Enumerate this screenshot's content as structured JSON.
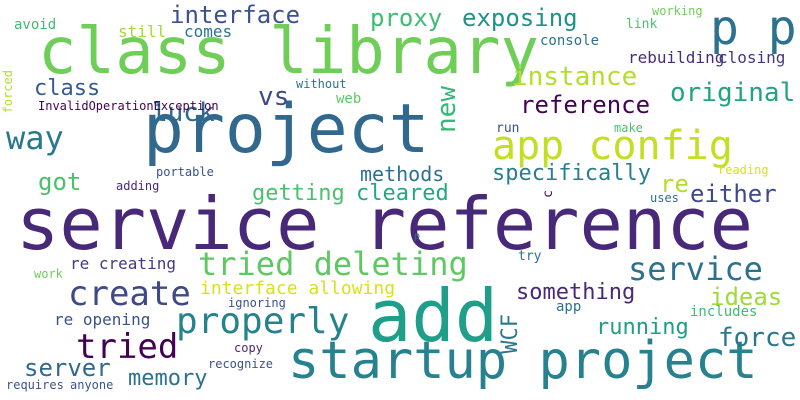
{
  "words": [
    {
      "id": "service-reference",
      "text": "service reference",
      "color": "#482878"
    },
    {
      "id": "project",
      "text": "project",
      "color": "#31688e"
    },
    {
      "id": "class-library",
      "text": "class library",
      "color": "#6ece58"
    },
    {
      "id": "add",
      "text": "add",
      "color": "#1f9e89"
    },
    {
      "id": "startup-project",
      "text": "startup project",
      "color": "#26828e"
    },
    {
      "id": "p-p",
      "text": "p p",
      "color": "#2c728e"
    },
    {
      "id": "app-config",
      "text": "app config",
      "color": "#c2df23"
    },
    {
      "id": "tried-deleting",
      "text": "tried deleting",
      "color": "#5ec962"
    },
    {
      "id": "properly",
      "text": "properly",
      "color": "#26828e"
    },
    {
      "id": "create",
      "text": "create",
      "color": "#3e4989"
    },
    {
      "id": "tried",
      "text": "tried",
      "color": "#440154"
    },
    {
      "id": "service",
      "text": "service",
      "color": "#2c728e"
    },
    {
      "id": "way",
      "text": "way",
      "color": "#2a788e"
    },
    {
      "id": "interface",
      "text": "interface",
      "color": "#3b528b"
    },
    {
      "id": "proxy",
      "text": "proxy",
      "color": "#3dbc74"
    },
    {
      "id": "exposing",
      "text": "exposing",
      "color": "#21918c"
    },
    {
      "id": "instance",
      "text": "instance",
      "color": "#b5de2b"
    },
    {
      "id": "reference",
      "text": "reference",
      "color": "#440154"
    },
    {
      "id": "original",
      "text": "original",
      "color": "#20a486"
    },
    {
      "id": "luck",
      "text": "luck",
      "color": "#31688e"
    },
    {
      "id": "class",
      "text": "class",
      "color": "#365c8d"
    },
    {
      "id": "vs",
      "text": "vs",
      "color": "#3e4989"
    },
    {
      "id": "new",
      "text": "new",
      "color": "#35b779"
    },
    {
      "id": "got",
      "text": "got",
      "color": "#4ac16d"
    },
    {
      "id": "methods",
      "text": "methods",
      "color": "#2c728e"
    },
    {
      "id": "specifically",
      "text": "specifically",
      "color": "#277f8e"
    },
    {
      "id": "getting",
      "text": "getting",
      "color": "#4ac16d"
    },
    {
      "id": "cleared",
      "text": "cleared",
      "color": "#22a884"
    },
    {
      "id": "either",
      "text": "either",
      "color": "#3e4989"
    },
    {
      "id": "re-top",
      "text": "re",
      "color": "#b5de2b"
    },
    {
      "id": "interface-allowing",
      "text": "interface allowing",
      "color": "#d8e219"
    },
    {
      "id": "something",
      "text": "something",
      "color": "#482878"
    },
    {
      "id": "ideas",
      "text": "ideas",
      "color": "#a0da39"
    },
    {
      "id": "running",
      "text": "running",
      "color": "#1f9e89"
    },
    {
      "id": "force",
      "text": "force",
      "color": "#2a788e"
    },
    {
      "id": "memory",
      "text": "memory",
      "color": "#2c728e"
    },
    {
      "id": "server",
      "text": "server",
      "color": "#31688e"
    },
    {
      "id": "wcf",
      "text": "WCF",
      "color": "#2a788e"
    },
    {
      "id": "re-creating",
      "text": "re creating",
      "color": "#443983"
    },
    {
      "id": "re-opening",
      "text": "re opening",
      "color": "#3b528b"
    },
    {
      "id": "rebuilding",
      "text": "rebuilding",
      "color": "#472c7a"
    },
    {
      "id": "closing",
      "text": "closing",
      "color": "#453781"
    },
    {
      "id": "still",
      "text": "still",
      "color": "#a0da39"
    },
    {
      "id": "comes",
      "text": "comes",
      "color": "#2c728e"
    },
    {
      "id": "console",
      "text": "console",
      "color": "#2c728e"
    },
    {
      "id": "avoid",
      "text": "avoid",
      "color": "#3dbc74"
    },
    {
      "id": "link",
      "text": "link",
      "color": "#4ac16d"
    },
    {
      "id": "working",
      "text": "working",
      "color": "#6ece58"
    },
    {
      "id": "forced",
      "text": "forced",
      "color": "#b5de2b"
    },
    {
      "id": "invalidoperationexception",
      "text": "InvalidOperationException",
      "color": "#440154"
    },
    {
      "id": "without",
      "text": "without",
      "color": "#2c728e"
    },
    {
      "id": "web",
      "text": "web",
      "color": "#5ec962"
    },
    {
      "id": "run",
      "text": "run",
      "color": "#3b528b"
    },
    {
      "id": "make",
      "text": "make",
      "color": "#4ac16d"
    },
    {
      "id": "reading",
      "text": "reading",
      "color": "#d8e219"
    },
    {
      "id": "adding",
      "text": "adding",
      "color": "#482878"
    },
    {
      "id": "portable",
      "text": "portable",
      "color": "#3b528b"
    },
    {
      "id": "uses",
      "text": "uses",
      "color": "#2c728e"
    },
    {
      "id": "c",
      "text": "c",
      "color": "#440154"
    },
    {
      "id": "p-small",
      "text": "p",
      "color": "#31688e"
    },
    {
      "id": "try",
      "text": "try",
      "color": "#2c728e"
    },
    {
      "id": "work",
      "text": "work",
      "color": "#6ece58"
    },
    {
      "id": "ignoring",
      "text": "ignoring",
      "color": "#3b528b"
    },
    {
      "id": "app",
      "text": "app",
      "color": "#2c728e"
    },
    {
      "id": "includes",
      "text": "includes",
      "color": "#3dbc74"
    },
    {
      "id": "copy",
      "text": "copy",
      "color": "#482878"
    },
    {
      "id": "recognize",
      "text": "recognize",
      "color": "#3b528b"
    },
    {
      "id": "requires",
      "text": "requires",
      "color": "#3b528b"
    },
    {
      "id": "anyone",
      "text": "anyone",
      "color": "#3b528b"
    }
  ]
}
